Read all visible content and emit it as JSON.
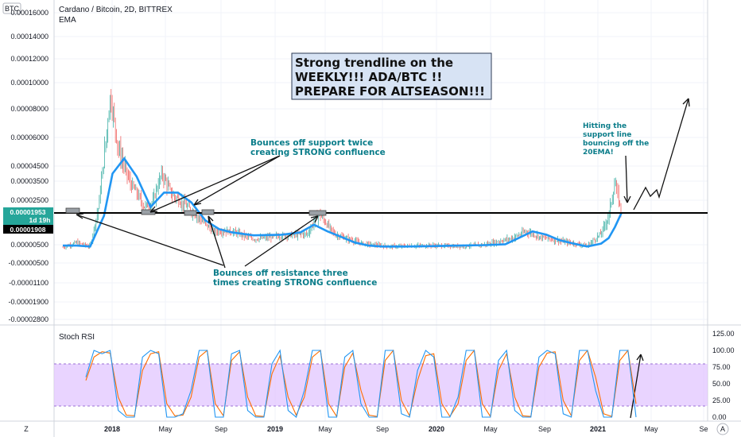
{
  "header": {
    "currency_badge": "BTC",
    "symbol_title": "Cardano / Bitcoin, 2D, BITTREX",
    "indicator": "EMA"
  },
  "price_tags": {
    "last_price": "0.00001953",
    "countdown": "1d 19h",
    "ema_value": "0.00001908"
  },
  "annotations": {
    "box_lines": [
      "Strong trendline on the",
      "WEEKLY!!! ADA/BTC !!",
      "PREPARE FOR ALTSEASON!!!"
    ],
    "support_lines": [
      "Bounces off support twice",
      "creating STRONG confluence"
    ],
    "resistance_lines": [
      "Bounces off resistance three",
      "times creating STRONG confluence"
    ],
    "ema_lines": [
      "Hitting the",
      "support line",
      "bouncing off the",
      "20EMA!"
    ]
  },
  "panel2": {
    "title": "Stoch RSI"
  },
  "controls": {
    "zoom_label": "Z",
    "auto_label": "A"
  },
  "colors": {
    "candle_up": "#26a69a",
    "candle_down": "#ef5350",
    "ema": "#2196f3",
    "stoch_k": "#2196f3",
    "stoch_d": "#ff6d00",
    "stoch_band": "#e1c6ff",
    "box_fill": "#d7e3f4",
    "tag_last": "#26a69a"
  },
  "chart_data": [
    {
      "type": "line",
      "title": "Cardano / Bitcoin, 2D, BITTREX",
      "y_ticks": [
        "0.00016000",
        "0.00014000",
        "0.00012000",
        "0.00010000",
        "0.00008000",
        "0.00006000",
        "0.00004500",
        "0.00003500",
        "0.00002500",
        "0.00000500",
        "-0.00000500",
        "-0.00001100",
        "-0.00001900",
        "-0.00002800"
      ],
      "x_ticks": [
        "2018",
        "May",
        "Sep",
        "2019",
        "May",
        "Sep",
        "2020",
        "May",
        "Sep",
        "2021",
        "May",
        "Se"
      ],
      "series": [
        {
          "name": "EMA",
          "x": [
            "2017-10-01",
            "2017-11-01",
            "2017-12-01",
            "2018-01-01",
            "2018-01-20",
            "2018-02-15",
            "2018-03-15",
            "2018-04-15",
            "2018-05-15",
            "2018-06-15",
            "2018-07-15",
            "2018-08-15",
            "2018-09-15",
            "2018-10-15",
            "2018-12-01",
            "2019-02-01",
            "2019-03-15",
            "2019-04-15",
            "2019-05-15",
            "2019-06-15",
            "2019-07-15",
            "2019-08-15",
            "2019-09-15",
            "2019-11-01",
            "2020-01-01",
            "2020-03-01",
            "2020-05-01",
            "2020-06-15",
            "2020-07-15",
            "2020-08-15",
            "2020-09-15",
            "2020-10-15",
            "2020-11-15",
            "2020-12-15",
            "2021-01-15",
            "2021-02-01",
            "2021-02-15",
            "2021-03-01"
          ],
          "y": [
            4.5e-06,
            4.5e-06,
            4e-06,
            1.8e-05,
            4e-05,
            4.9e-05,
            3.8e-05,
            2.2e-05,
            2.9e-05,
            2.9e-05,
            2.4e-05,
            1.6e-05,
            1.2e-05,
            1.05e-05,
            9.2e-06,
            9.5e-06,
            1.05e-05,
            1.4e-05,
            1.1e-05,
            8.5e-06,
            6e-06,
            4.5e-06,
            4e-06,
            4e-06,
            4.2e-06,
            4.5e-06,
            4.8e-06,
            5.2e-06,
            8e-06,
            1.1e-05,
            9.5e-06,
            7e-06,
            5.5e-06,
            4e-06,
            5.5e-06,
            8e-06,
            1.3e-05,
            1.908e-05
          ]
        },
        {
          "name": "ADA/BTC",
          "x": [
            "2017-10-01",
            "2017-11-01",
            "2017-12-01",
            "2017-12-20",
            "2018-01-05",
            "2018-01-15",
            "2018-02-01",
            "2018-03-01",
            "2018-04-01",
            "2018-04-20",
            "2018-05-10",
            "2018-06-01",
            "2018-07-01",
            "2018-08-01",
            "2018-09-01",
            "2018-10-15",
            "2018-12-01",
            "2019-02-01",
            "2019-04-01",
            "2019-04-25",
            "2019-06-01",
            "2019-08-01",
            "2019-10-01",
            "2020-01-01",
            "2020-03-01",
            "2020-05-01",
            "2020-07-01",
            "2020-08-01",
            "2020-09-01",
            "2020-11-01",
            "2020-12-15",
            "2021-01-15",
            "2021-02-01",
            "2021-02-15",
            "2021-03-01"
          ],
          "y": [
            3.5e-06,
            6e-06,
            4e-06,
            2.2e-05,
            5.8e-05,
            9e-05,
            5.5e-05,
            3.4e-05,
            2.2e-05,
            2.4e-05,
            4e-05,
            2.8e-05,
            2.3e-05,
            1.7e-05,
            1.1e-05,
            1.1e-05,
            7.5e-06,
            9e-06,
            1e-05,
            1.9e-05,
            9.5e-06,
            5.5e-06,
            4e-06,
            4.5e-06,
            4e-06,
            5e-06,
            8e-06,
            1.1e-05,
            8.5e-06,
            6e-06,
            4.5e-06,
            1e-05,
            1.8e-05,
            3.4e-05,
            1.953e-05
          ]
        },
        {
          "name": "Support trendline",
          "x": [
            "2017-10-01",
            "2021-06-01"
          ],
          "y": [
            1.9e-05,
            1.9e-05
          ]
        }
      ]
    },
    {
      "type": "line",
      "title": "Stoch RSI",
      "y_ticks": [
        "125.00",
        "100.00",
        "75.00",
        "50.00",
        "25.00",
        "0.00"
      ],
      "ylim": [
        0,
        125
      ],
      "band": [
        20,
        80
      ],
      "series": [
        {
          "name": "K",
          "y": [
            60,
            100,
            95,
            100,
            10,
            0,
            0,
            90,
            100,
            95,
            0,
            0,
            5,
            40,
            100,
            100,
            0,
            0,
            95,
            100,
            10,
            0,
            0,
            80,
            100,
            10,
            0,
            40,
            100,
            100,
            0,
            0,
            90,
            100,
            20,
            0,
            0,
            100,
            100,
            5,
            0,
            70,
            100,
            90,
            0,
            0,
            30,
            100,
            100,
            0,
            0,
            85,
            100,
            10,
            0,
            0,
            90,
            100,
            95,
            5,
            0,
            100,
            100,
            40,
            0,
            0,
            100,
            100,
            0
          ]
        },
        {
          "name": "D",
          "y": [
            55,
            90,
            98,
            96,
            30,
            3,
            2,
            70,
            95,
            98,
            20,
            2,
            3,
            30,
            90,
            100,
            20,
            2,
            85,
            98,
            30,
            2,
            1,
            65,
            92,
            30,
            3,
            30,
            90,
            100,
            20,
            1,
            75,
            96,
            40,
            3,
            1,
            85,
            100,
            25,
            2,
            55,
            92,
            95,
            20,
            1,
            20,
            85,
            100,
            20,
            1,
            70,
            95,
            30,
            2,
            1,
            75,
            96,
            98,
            25,
            2,
            85,
            100,
            60,
            5,
            1,
            85,
            100,
            20
          ]
        }
      ]
    }
  ]
}
